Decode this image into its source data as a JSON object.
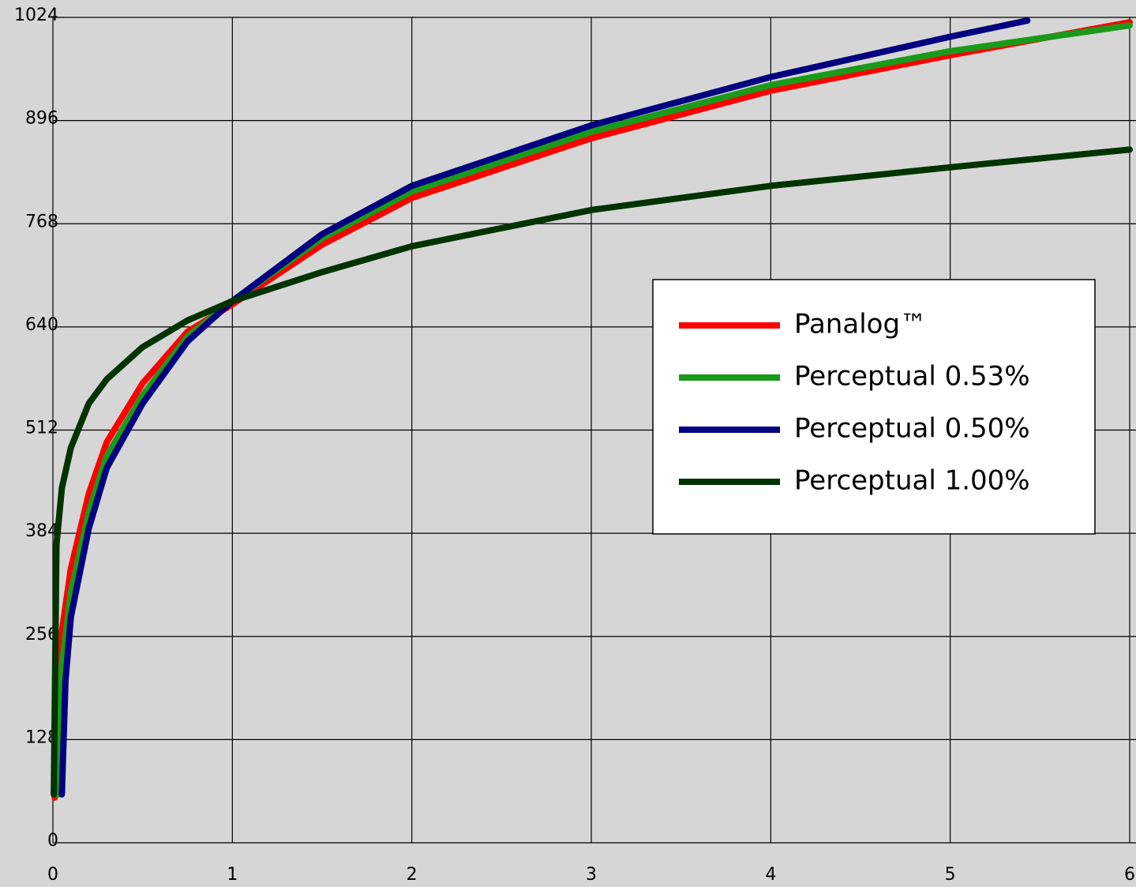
{
  "chart_data": {
    "type": "line",
    "xlim": [
      0,
      6
    ],
    "ylim": [
      0,
      1024
    ],
    "xticks": [
      0,
      1,
      2,
      3,
      4,
      5,
      6
    ],
    "yticks": [
      0,
      128,
      256,
      384,
      512,
      640,
      768,
      896,
      1024
    ],
    "grid": true,
    "series": [
      {
        "name": "Panalog™",
        "color": "#ff0000",
        "x": [
          0.01,
          0.05,
          0.1,
          0.2,
          0.3,
          0.5,
          0.75,
          1,
          1.5,
          2,
          3,
          4,
          5,
          6
        ],
        "values": [
          56,
          262,
          340,
          433,
          497,
          570,
          634,
          668,
          742,
          800,
          874,
          933,
          977,
          1018
        ]
      },
      {
        "name": "Perceptual 0.53%",
        "color": "#1a9a1a",
        "x": [
          0.03,
          0.05,
          0.1,
          0.2,
          0.3,
          0.5,
          0.75,
          1,
          1.5,
          2,
          3,
          4,
          5,
          6
        ],
        "values": [
          60,
          220,
          310,
          410,
          480,
          555,
          628,
          672,
          750,
          808,
          882,
          940,
          982,
          1014
        ]
      },
      {
        "name": "Perceptual 0.50%",
        "color": "#000080",
        "x": [
          0.05,
          0.07,
          0.1,
          0.2,
          0.3,
          0.5,
          0.75,
          1,
          1.5,
          2,
          3,
          4,
          5,
          5.43
        ],
        "values": [
          60,
          200,
          280,
          390,
          465,
          545,
          622,
          672,
          755,
          815,
          890,
          950,
          1000,
          1020
        ]
      },
      {
        "name": "Perceptual 1.00%",
        "color": "#003300",
        "x": [
          0.005,
          0.02,
          0.05,
          0.1,
          0.2,
          0.3,
          0.5,
          0.75,
          1,
          1.5,
          2,
          3,
          4,
          5,
          6
        ],
        "values": [
          60,
          370,
          440,
          490,
          545,
          575,
          615,
          648,
          672,
          708,
          740,
          785,
          815,
          838,
          860
        ]
      }
    ]
  }
}
